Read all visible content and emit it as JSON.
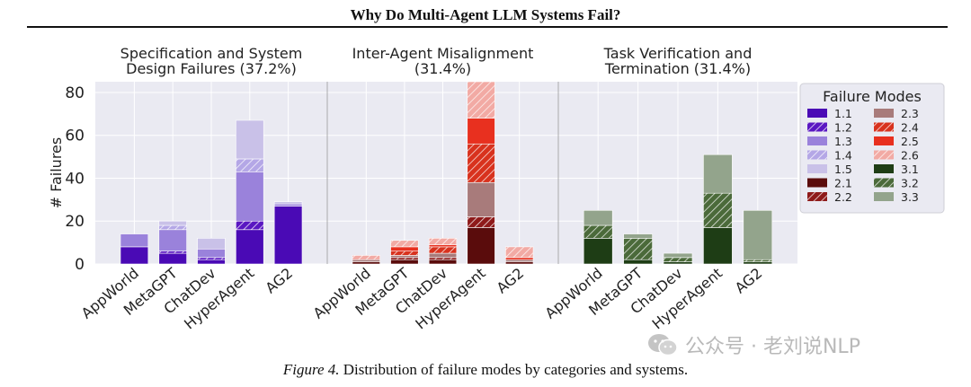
{
  "title": "Why Do Multi-Agent LLM Systems Fail?",
  "caption": {
    "figure": "Figure 4.",
    "text": "Distribution of failure modes by categories and systems."
  },
  "watermark": "公众号 · 老刘说NLP",
  "colors": {
    "1.1": "#4a0ab5",
    "1.2": "#5a17c2",
    "1.3": "#9a82db",
    "1.4": "#b4a7e6",
    "1.5": "#c9c1e8",
    "2.1": "#5a0c0c",
    "2.2": "#8e1a1a",
    "2.3": "#a87b7b",
    "2.4": "#d8321e",
    "2.5": "#e8301f",
    "2.6": "#f2aaa4",
    "3.1": "#1e3d15",
    "3.2": "#4b6a3a",
    "3.3": "#93a48c"
  },
  "chart_data": {
    "type": "bar",
    "stacked": true,
    "ylabel": "# Failures",
    "ylim": [
      0,
      85
    ],
    "yticks": [
      0,
      20,
      40,
      60,
      80
    ],
    "grid": true,
    "legend": {
      "title": "Failure Modes",
      "placement": "right",
      "items": [
        {
          "code": "1.1",
          "hatch": false
        },
        {
          "code": "1.2",
          "hatch": true
        },
        {
          "code": "1.3",
          "hatch": false
        },
        {
          "code": "1.4",
          "hatch": true
        },
        {
          "code": "1.5",
          "hatch": false
        },
        {
          "code": "2.1",
          "hatch": false
        },
        {
          "code": "2.2",
          "hatch": true
        },
        {
          "code": "2.3",
          "hatch": false
        },
        {
          "code": "2.4",
          "hatch": true
        },
        {
          "code": "2.5",
          "hatch": false
        },
        {
          "code": "2.6",
          "hatch": true
        },
        {
          "code": "3.1",
          "hatch": false
        },
        {
          "code": "3.2",
          "hatch": true
        },
        {
          "code": "3.3",
          "hatch": false
        }
      ]
    },
    "panels": [
      {
        "title_line1": "Specification and System",
        "title_line2": "Design Failures (37.2%)",
        "categories": [
          "AppWorld",
          "MetaGPT",
          "ChatDev",
          "HyperAgent",
          "AG2"
        ],
        "series": [
          {
            "name": "1.1",
            "hatch": false,
            "values": [
              8,
              5,
              2,
              16,
              27
            ]
          },
          {
            "name": "1.2",
            "hatch": true,
            "values": [
              0,
              1,
              1,
              4,
              0
            ]
          },
          {
            "name": "1.3",
            "hatch": false,
            "values": [
              6,
              10,
              4,
              23,
              1
            ]
          },
          {
            "name": "1.4",
            "hatch": true,
            "values": [
              0,
              2,
              0,
              6,
              0
            ]
          },
          {
            "name": "1.5",
            "hatch": false,
            "values": [
              0,
              2,
              5,
              18,
              1
            ]
          }
        ]
      },
      {
        "title_line1": "Inter-Agent Misalignment",
        "title_line2": "(31.4%)",
        "categories": [
          "AppWorld",
          "MetaGPT",
          "ChatDev",
          "HyperAgent",
          "AG2"
        ],
        "series": [
          {
            "name": "2.1",
            "hatch": false,
            "values": [
              1,
              2,
              2,
              17,
              1
            ]
          },
          {
            "name": "2.2",
            "hatch": true,
            "values": [
              0,
              1,
              1,
              5,
              0
            ]
          },
          {
            "name": "2.3",
            "hatch": false,
            "values": [
              1,
              1,
              2,
              16,
              1
            ]
          },
          {
            "name": "2.4",
            "hatch": true,
            "values": [
              0,
              2,
              3,
              18,
              0
            ]
          },
          {
            "name": "2.5",
            "hatch": false,
            "values": [
              0,
              2,
              1,
              12,
              1
            ]
          },
          {
            "name": "2.6",
            "hatch": true,
            "values": [
              2,
              3,
              3,
              17,
              5
            ]
          }
        ]
      },
      {
        "title_line1": "Task Verification and",
        "title_line2": "Termination (31.4%)",
        "categories": [
          "AppWorld",
          "MetaGPT",
          "ChatDev",
          "HyperAgent",
          "AG2"
        ],
        "series": [
          {
            "name": "3.1",
            "hatch": false,
            "values": [
              12,
              2,
              1,
              17,
              1
            ]
          },
          {
            "name": "3.2",
            "hatch": true,
            "values": [
              6,
              10,
              2,
              16,
              1
            ]
          },
          {
            "name": "3.3",
            "hatch": false,
            "values": [
              7,
              2,
              2,
              18,
              23
            ]
          }
        ]
      }
    ]
  }
}
